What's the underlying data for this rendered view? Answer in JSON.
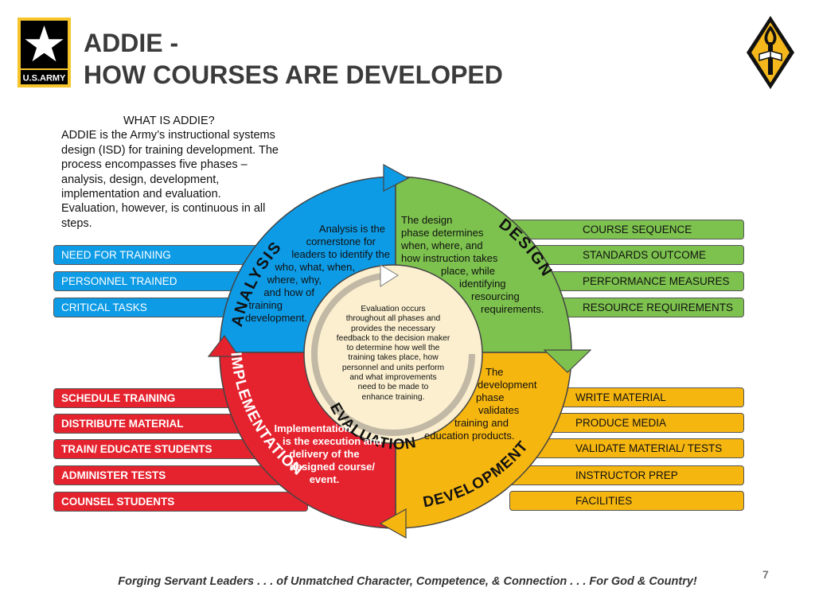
{
  "header": {
    "logo_text": "U.S.ARMY",
    "title_line1": "ADDIE -",
    "title_line2": "HOW COURSES ARE DEVELOPED"
  },
  "intro": {
    "heading": "WHAT IS ADDIE?",
    "body": "ADDIE is the Army’s instructional systems design (ISD) for training development.  The process encompasses five phases – analysis, design, development, implementation and evaluation.  Evaluation, however, is continuous in all steps."
  },
  "phases": {
    "analysis": {
      "label": "ANALYSIS",
      "color": "#0d9be6",
      "lines": [
        "Analysis is the",
        "cornerstone for",
        "leaders to identify the",
        "who, what, when,",
        "where, why,",
        "and how of",
        "training",
        "development."
      ]
    },
    "design": {
      "label": "DESIGN",
      "color": "#7dc24e",
      "lines": [
        "The design",
        "phase determines",
        "when, where, and",
        "how instruction takes",
        "place, while",
        "identifying",
        "resourcing",
        "requirements."
      ]
    },
    "development": {
      "label": "DEVELOPMENT",
      "color": "#f6b610",
      "lines": [
        "The",
        "development",
        "phase",
        "validates",
        "training and",
        "education products."
      ]
    },
    "implementation": {
      "label": "IMPLEMENTATION",
      "color": "#e5232e",
      "lines": [
        "Implementation",
        "is the execution and",
        "delivery of the",
        "designed course/",
        "event."
      ]
    },
    "evaluation": {
      "label": "EVALUATION",
      "color": "#fbefcf",
      "lines": [
        "Evaluation occurs",
        "throughout all phases and",
        "provides the necessary",
        "feedback to the decision maker",
        "to determine how well the",
        "training takes place, how",
        "personnel and units perform",
        "and what improvements",
        "need to be made to",
        "enhance training."
      ]
    }
  },
  "analysis_items": [
    "NEED FOR TRAINING",
    "PERSONNEL TRAINED",
    "CRITICAL TASKS"
  ],
  "design_items": [
    "COURSE SEQUENCE",
    "STANDARDS OUTCOME",
    "PERFORMANCE MEASURES",
    "RESOURCE REQUIREMENTS"
  ],
  "implementation_items": [
    "SCHEDULE TRAINING",
    "DISTRIBUTE MATERIAL",
    "TRAIN/ EDUCATE STUDENTS",
    "ADMINISTER TESTS",
    "COUNSEL STUDENTS"
  ],
  "development_items": [
    "WRITE MATERIAL",
    "PRODUCE MEDIA",
    "VALIDATE MATERIAL/ TESTS",
    "INSTRUCTOR PREP",
    "FACILITIES"
  ],
  "footer": "Forging Servant Leaders . . . of Unmatched Character, Competence, & Connection . . . For God & Country!",
  "page_number": "7"
}
